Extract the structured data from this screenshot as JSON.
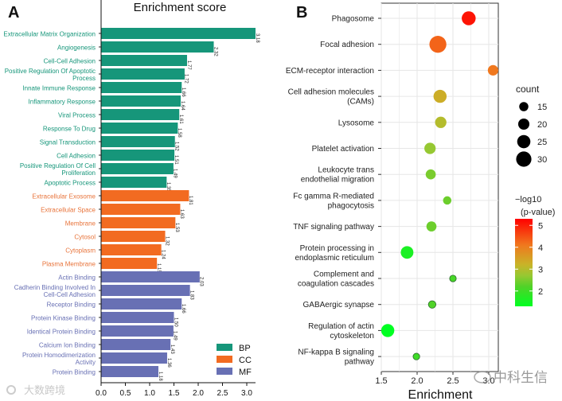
{
  "chart_data": [
    {
      "panel_label": "A",
      "type": "bar",
      "orientation": "horizontal",
      "title": "Enrichment score",
      "xlim": [
        0,
        3.2
      ],
      "xticks": [
        "0.0",
        "0.5",
        "1.0",
        "1.5",
        "2.0",
        "2.5",
        "3.0"
      ],
      "legend": [
        {
          "name": "BP",
          "color": "#16967a"
        },
        {
          "name": "CC",
          "color": "#f26b21"
        },
        {
          "name": "MF",
          "color": "#6870b4"
        }
      ],
      "legend_position": "bottom-right",
      "categories": [
        {
          "label": "Extracellular Matrix Organization",
          "value": 3.18,
          "value_label": "3.18",
          "group": "BP"
        },
        {
          "label": "Angiogenesis",
          "value": 2.32,
          "value_label": "2.32",
          "group": "BP"
        },
        {
          "label": "Cell-Cell Adhesion",
          "value": 1.77,
          "value_label": "1.77",
          "group": "BP"
        },
        {
          "label": "Positive Regulation Of Apoptotic|Process",
          "value": 1.72,
          "value_label": "1.72",
          "group": "BP"
        },
        {
          "label": "Innate Immune Response",
          "value": 1.66,
          "value_label": "1.66",
          "group": "BP"
        },
        {
          "label": "Inflammatory Response",
          "value": 1.64,
          "value_label": "1.64",
          "group": "BP"
        },
        {
          "label": "Viral Process",
          "value": 1.61,
          "value_label": "1.61",
          "group": "BP"
        },
        {
          "label": "Response To Drug",
          "value": 1.58,
          "value_label": "1.58",
          "group": "BP"
        },
        {
          "label": "Signal Transduction",
          "value": 1.52,
          "value_label": "1.52",
          "group": "BP"
        },
        {
          "label": "Cell Adhesion",
          "value": 1.51,
          "value_label": "1.51",
          "group": "BP"
        },
        {
          "label": "Positive Regulation Of Cell|Proliferation",
          "value": 1.49,
          "value_label": "1.49",
          "group": "BP"
        },
        {
          "label": "Apoptotic Process",
          "value": 1.35,
          "value_label": "1.35",
          "group": "BP"
        },
        {
          "label": "Extracellular Exosome",
          "value": 1.81,
          "value_label": "1.81",
          "group": "CC"
        },
        {
          "label": "Extracellular Space",
          "value": 1.63,
          "value_label": "1.63",
          "group": "CC"
        },
        {
          "label": "Membrane",
          "value": 1.53,
          "value_label": "1.53",
          "group": "CC"
        },
        {
          "label": "Cytosol",
          "value": 1.32,
          "value_label": "1.32",
          "group": "CC"
        },
        {
          "label": "Cytoplasm",
          "value": 1.24,
          "value_label": "1.24",
          "group": "CC"
        },
        {
          "label": "Plasma Membrane",
          "value": 1.15,
          "value_label": "1.15",
          "group": "CC"
        },
        {
          "label": "Actin Binding",
          "value": 2.03,
          "value_label": "2.03",
          "group": "MF"
        },
        {
          "label": "Cadherin Binding Involved In|Cell-Cell Adhesion",
          "value": 1.83,
          "value_label": "1.83",
          "group": "MF"
        },
        {
          "label": "Receptor Binding",
          "value": 1.66,
          "value_label": "1.66",
          "group": "MF"
        },
        {
          "label": "Protein Kinase Binding",
          "value": 1.5,
          "value_label": "1.50",
          "group": "MF"
        },
        {
          "label": "Identical Protein Binding",
          "value": 1.49,
          "value_label": "1.49",
          "group": "MF"
        },
        {
          "label": "Calcium Ion Binding",
          "value": 1.43,
          "value_label": "1.43",
          "group": "MF"
        },
        {
          "label": "Protein Homodimerization|Activity",
          "value": 1.36,
          "value_label": "1.36",
          "group": "MF"
        },
        {
          "label": "Protein Binding",
          "value": 1.18,
          "value_label": "1.18",
          "group": "MF"
        }
      ],
      "watermark": "大数跨境"
    },
    {
      "panel_label": "B",
      "type": "scatter",
      "subtype": "bubble",
      "xlabel": "Enrichment",
      "xlim": [
        1.5,
        3.13
      ],
      "xticks": [
        "1.5",
        "2.0",
        "2.5",
        "3.0"
      ],
      "grid": true,
      "size_legend": {
        "title": "count",
        "values": [
          15,
          20,
          25,
          30
        ]
      },
      "color_legend": {
        "title_line1": "−log10",
        "title_line2": "(p-value)",
        "ticks": [
          "5",
          "4",
          "3",
          "2"
        ],
        "range": [
          1.3,
          5.3
        ],
        "low_color": "#00ff22",
        "high_color": "#ff0000"
      },
      "points": [
        {
          "label": "Phagosome",
          "x": 2.72,
          "count": 25,
          "neglog10p": 5.1
        },
        {
          "label": "Focal adhesion",
          "x": 2.29,
          "count": 32,
          "neglog10p": 4.3
        },
        {
          "label": "ECM-receptor interaction",
          "x": 3.06,
          "count": 17,
          "neglog10p": 4.1
        },
        {
          "label": "Cell adhesion molecules|(CAMs)",
          "x": 2.32,
          "count": 23,
          "neglog10p": 3.3
        },
        {
          "label": "Lysosome",
          "x": 2.33,
          "count": 19,
          "neglog10p": 3.0
        },
        {
          "label": "Platelet activation",
          "x": 2.18,
          "count": 19,
          "neglog10p": 2.7
        },
        {
          "label": "Leukocyte trans|endothelial migration",
          "x": 2.19,
          "count": 16,
          "neglog10p": 2.5
        },
        {
          "label": "Fc gamma R-mediated|phagocytosis",
          "x": 2.42,
          "count": 12,
          "neglog10p": 2.4
        },
        {
          "label": "TNF signaling pathway",
          "x": 2.2,
          "count": 16,
          "neglog10p": 2.4
        },
        {
          "label": "Protein processing in|endoplasmic reticulum",
          "x": 1.86,
          "count": 22,
          "neglog10p": 1.6
        },
        {
          "label": "Complement and|coagulation cascades",
          "x": 2.5,
          "count": 8,
          "neglog10p": 2.1
        },
        {
          "label": "GABAergic synapse",
          "x": 2.21,
          "count": 10,
          "neglog10p": 2.2
        },
        {
          "label": "Regulation of actin|cytoskeleton",
          "x": 1.59,
          "count": 23,
          "neglog10p": 1.3
        },
        {
          "label": "NF-kappa B signaling|pathway",
          "x": 1.99,
          "count": 8,
          "neglog10p": 2.0
        }
      ],
      "watermark": "中科生信"
    }
  ]
}
